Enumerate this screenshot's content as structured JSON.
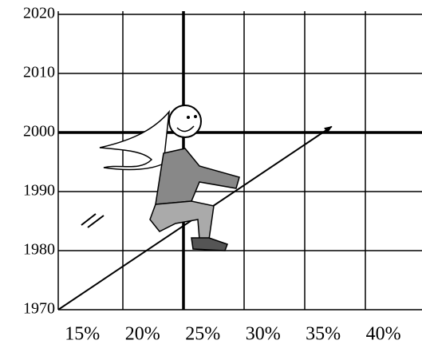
{
  "chart_data": {
    "type": "line",
    "x": [
      13,
      35.7
    ],
    "series": [
      {
        "color": "#000000",
        "values": [
          1970,
          2001
        ]
      }
    ],
    "xlim": [
      13,
      43.2
    ],
    "xticks": [
      {
        "value": 15,
        "label": "15%"
      },
      {
        "value": 20,
        "label": "20%"
      },
      {
        "value": 25,
        "label": "25%"
      },
      {
        "value": 30,
        "label": "30%"
      },
      {
        "value": 35,
        "label": "35%"
      },
      {
        "value": 40,
        "label": "40%"
      }
    ],
    "ylim": [
      1970,
      2020
    ],
    "yticks": [
      1970,
      1980,
      1990,
      2000,
      2010,
      2020
    ],
    "grid": true
  }
}
